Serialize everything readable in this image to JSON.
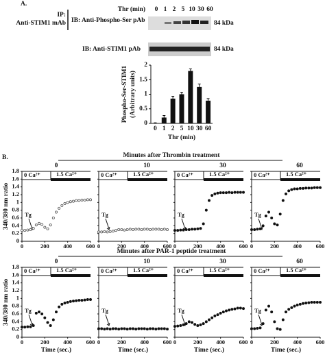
{
  "panel_labels": [
    "A.",
    "B."
  ],
  "blot": {
    "ip_label": "IP:",
    "ip_antibody": "Anti-STIM1 mAb",
    "ib_top": "IB: Anti-Phospho-Ser pAb",
    "ib_bottom": "IB: Anti-STIM1 pAb",
    "treatment": "Thr (min)",
    "lanes": [
      "0",
      "1",
      "2",
      "5",
      "10",
      "30",
      "60"
    ],
    "size_top": "84 kDa",
    "size_bottom": "84 kDa"
  },
  "rows": [
    {
      "title": "Minutes after Thrombin treatment"
    },
    {
      "title": "Minutes after PAR-1 peptide treatment"
    }
  ],
  "chart_data": [
    {
      "type": "bar",
      "ylabel": [
        "Phospho-Ser-STIM1",
        "(Arbitrary units)"
      ],
      "xlabel": "Thr (min)",
      "categories": [
        "0",
        "1",
        "2",
        "5",
        "10",
        "30",
        "60"
      ],
      "values": [
        0,
        0.2,
        0.85,
        1.0,
        1.8,
        1.25,
        0.78
      ],
      "errors": [
        0.02,
        0.07,
        0.08,
        0.07,
        0.07,
        0.1,
        0.07
      ],
      "color": "#111",
      "ylim": [
        0,
        2
      ],
      "yticks": [
        0,
        0.5,
        1,
        1.5,
        2
      ]
    },
    {
      "type": "line",
      "title": "0",
      "marker": "open",
      "ylabel": "340/380 nm ratio",
      "annotations": [
        "Tg",
        "0 Ca²⁺",
        "1.5 Ca²⁺"
      ],
      "x": [
        0,
        25,
        50,
        75,
        100,
        125,
        150,
        175,
        200,
        225,
        250,
        275,
        300,
        325,
        350,
        375,
        400,
        425,
        450,
        475,
        500,
        525,
        550,
        575,
        600
      ],
      "series": [
        {
          "color": "#555",
          "values": [
            0.28,
            0.28,
            0.29,
            0.3,
            0.33,
            0.42,
            0.46,
            0.43,
            0.36,
            0.32,
            0.42,
            0.6,
            0.75,
            0.85,
            0.92,
            0.97,
            1.0,
            1.02,
            1.03,
            1.05,
            1.05,
            1.06,
            1.06,
            1.07,
            1.07
          ]
        }
      ],
      "xlim": [
        0,
        600
      ],
      "xticks": [
        0,
        200,
        400,
        600
      ],
      "ylim": [
        0,
        1.8
      ],
      "yticks": [
        0,
        0.2,
        0.4,
        0.6,
        0.8,
        1,
        1.2,
        1.4,
        1.6,
        1.8
      ]
    },
    {
      "type": "line",
      "title": "10",
      "marker": "open",
      "annotations": [
        "Tg",
        "0 Ca²⁺",
        "1.5 Ca²⁺"
      ],
      "x": [
        0,
        25,
        50,
        75,
        100,
        125,
        150,
        175,
        200,
        225,
        250,
        275,
        300,
        325,
        350,
        375,
        400,
        425,
        450,
        475,
        500,
        525,
        550,
        575,
        600
      ],
      "series": [
        {
          "color": "#555",
          "values": [
            0.24,
            0.24,
            0.25,
            0.24,
            0.25,
            0.26,
            0.28,
            0.3,
            0.3,
            0.29,
            0.3,
            0.31,
            0.3,
            0.31,
            0.31,
            0.3,
            0.31,
            0.31,
            0.3,
            0.31,
            0.31,
            0.31,
            0.3,
            0.31,
            0.3
          ]
        }
      ],
      "xlim": [
        0,
        600
      ],
      "xticks": [
        0,
        200,
        400,
        600
      ],
      "ylim": [
        0,
        1.8
      ],
      "yticks": [
        0,
        0.2,
        0.4,
        0.6,
        0.8,
        1,
        1.2,
        1.4,
        1.6,
        1.8
      ]
    },
    {
      "type": "line",
      "title": "30",
      "marker": "filled",
      "annotations": [
        "Tg",
        "0 Ca²⁺",
        "1.5 Ca²⁺"
      ],
      "x": [
        0,
        25,
        50,
        75,
        100,
        125,
        150,
        175,
        200,
        225,
        250,
        275,
        300,
        325,
        350,
        375,
        400,
        425,
        450,
        475,
        500,
        525,
        550,
        575,
        600
      ],
      "series": [
        {
          "color": "#111",
          "values": [
            0.28,
            0.28,
            0.29,
            0.29,
            0.3,
            0.3,
            0.31,
            0.31,
            0.32,
            0.33,
            0.45,
            0.8,
            1.05,
            1.18,
            1.22,
            1.24,
            1.25,
            1.25,
            1.25,
            1.26,
            1.25,
            1.26,
            1.26,
            1.26,
            1.26
          ]
        }
      ],
      "xlim": [
        0,
        600
      ],
      "xticks": [
        0,
        200,
        400,
        600
      ],
      "ylim": [
        0,
        1.8
      ],
      "yticks": [
        0,
        0.2,
        0.4,
        0.6,
        0.8,
        1,
        1.2,
        1.4,
        1.6,
        1.8
      ]
    },
    {
      "type": "line",
      "title": "60",
      "marker": "filled",
      "annotations": [
        "Tg",
        "0 Ca²⁺",
        "1.5 Ca²⁺"
      ],
      "x": [
        0,
        25,
        50,
        75,
        100,
        125,
        150,
        175,
        200,
        225,
        250,
        275,
        300,
        325,
        350,
        375,
        400,
        425,
        450,
        475,
        500,
        525,
        550,
        575,
        600
      ],
      "series": [
        {
          "color": "#111",
          "values": [
            0.3,
            0.3,
            0.31,
            0.32,
            0.4,
            0.65,
            0.75,
            0.6,
            0.45,
            0.42,
            0.7,
            1.05,
            1.22,
            1.3,
            1.33,
            1.35,
            1.35,
            1.36,
            1.36,
            1.37,
            1.37,
            1.37,
            1.38,
            1.38,
            1.38
          ]
        }
      ],
      "xlim": [
        0,
        600
      ],
      "xticks": [
        0,
        200,
        400,
        600
      ],
      "ylim": [
        0,
        1.8
      ],
      "yticks": [
        0,
        0.2,
        0.4,
        0.6,
        0.8,
        1,
        1.2,
        1.4,
        1.6,
        1.8
      ]
    },
    {
      "type": "line",
      "title": "0",
      "marker": "filled",
      "ylabel": "340/380 nm ratio",
      "xlabel": "Time (sec.)",
      "annotations": [
        "Tg",
        "0 Ca²⁺",
        "1.5 Ca²⁺"
      ],
      "x": [
        0,
        25,
        50,
        75,
        100,
        125,
        150,
        175,
        200,
        225,
        250,
        275,
        300,
        325,
        350,
        375,
        400,
        425,
        450,
        475,
        500,
        525,
        550,
        575,
        600
      ],
      "series": [
        {
          "color": "#111",
          "values": [
            0.26,
            0.26,
            0.27,
            0.27,
            0.3,
            0.62,
            0.65,
            0.6,
            0.5,
            0.38,
            0.3,
            0.45,
            0.65,
            0.78,
            0.85,
            0.88,
            0.9,
            0.92,
            0.93,
            0.94,
            0.95,
            0.95,
            0.96,
            0.97,
            0.97
          ]
        }
      ],
      "xlim": [
        0,
        600
      ],
      "xticks": [
        0,
        200,
        400,
        600
      ],
      "ylim": [
        0,
        1.8
      ],
      "yticks": [
        0,
        0.2,
        0.4,
        0.6,
        0.8,
        1,
        1.2,
        1.4,
        1.6,
        1.8
      ]
    },
    {
      "type": "line",
      "title": "10",
      "marker": "filled",
      "xlabel": "Time (sec.)",
      "annotations": [
        "Tg",
        "0 Ca²⁺",
        "1.5 Ca²⁺"
      ],
      "x": [
        0,
        25,
        50,
        75,
        100,
        125,
        150,
        175,
        200,
        225,
        250,
        275,
        300,
        325,
        350,
        375,
        400,
        425,
        450,
        475,
        500,
        525,
        550,
        575,
        600
      ],
      "series": [
        {
          "color": "#111",
          "values": [
            0.22,
            0.22,
            0.21,
            0.22,
            0.21,
            0.22,
            0.22,
            0.21,
            0.22,
            0.22,
            0.21,
            0.22,
            0.22,
            0.21,
            0.22,
            0.22,
            0.22,
            0.21,
            0.22,
            0.22,
            0.21,
            0.22,
            0.22,
            0.22,
            0.21
          ]
        }
      ],
      "xlim": [
        0,
        600
      ],
      "xticks": [
        0,
        200,
        400,
        600
      ],
      "ylim": [
        0,
        1.8
      ],
      "yticks": [
        0,
        0.2,
        0.4,
        0.6,
        0.8,
        1,
        1.2,
        1.4,
        1.6,
        1.8
      ]
    },
    {
      "type": "line",
      "title": "30",
      "marker": "filled",
      "xlabel": "Time (sec.)",
      "annotations": [
        "Tg",
        "0 Ca²⁺",
        "1.5 Ca²⁺"
      ],
      "x": [
        0,
        25,
        50,
        75,
        100,
        125,
        150,
        175,
        200,
        225,
        250,
        275,
        300,
        325,
        350,
        375,
        400,
        425,
        450,
        475,
        500,
        525,
        550,
        575,
        600
      ],
      "series": [
        {
          "color": "#111",
          "values": [
            0.28,
            0.29,
            0.3,
            0.32,
            0.35,
            0.4,
            0.38,
            0.33,
            0.3,
            0.32,
            0.35,
            0.4,
            0.45,
            0.5,
            0.55,
            0.58,
            0.62,
            0.65,
            0.68,
            0.7,
            0.72,
            0.73,
            0.75,
            0.75,
            0.74
          ]
        }
      ],
      "xlim": [
        0,
        600
      ],
      "xticks": [
        0,
        200,
        400,
        600
      ],
      "ylim": [
        0,
        1.8
      ],
      "yticks": [
        0,
        0.2,
        0.4,
        0.6,
        0.8,
        1,
        1.2,
        1.4,
        1.6,
        1.8
      ]
    },
    {
      "type": "line",
      "title": "60",
      "marker": "filled",
      "xlabel": "Time (sec.)",
      "annotations": [
        "Tg",
        "0 Ca²⁺",
        "1.5 Ca²⁺"
      ],
      "x": [
        0,
        25,
        50,
        75,
        100,
        125,
        150,
        175,
        200,
        225,
        250,
        275,
        300,
        325,
        350,
        375,
        400,
        425,
        450,
        475,
        500,
        525,
        550,
        575,
        600
      ],
      "series": [
        {
          "color": "#111",
          "values": [
            0.22,
            0.22,
            0.23,
            0.24,
            0.35,
            0.7,
            0.8,
            0.65,
            0.4,
            0.22,
            0.2,
            0.45,
            0.65,
            0.72,
            0.76,
            0.8,
            0.83,
            0.85,
            0.87,
            0.88,
            0.89,
            0.9,
            0.9,
            0.9,
            0.9
          ]
        }
      ],
      "xlim": [
        0,
        600
      ],
      "xticks": [
        0,
        200,
        400,
        600
      ],
      "ylim": [
        0,
        1.8
      ],
      "yticks": [
        0,
        0.2,
        0.4,
        0.6,
        0.8,
        1,
        1.2,
        1.4,
        1.6,
        1.8
      ]
    }
  ]
}
